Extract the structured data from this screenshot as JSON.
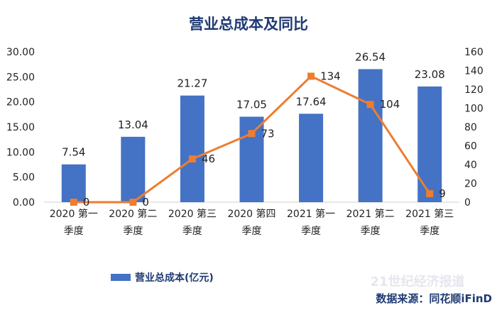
{
  "chart_data": {
    "type": "bar",
    "title": "营业总成本及同比",
    "categories": [
      [
        "2020 第一",
        "季度"
      ],
      [
        "2020 第二",
        "季度"
      ],
      [
        "2020 第三",
        "季度"
      ],
      [
        "2020 第四",
        "季度"
      ],
      [
        "2021 第一",
        "季度"
      ],
      [
        "2021 第二",
        "季度"
      ],
      [
        "2021 第三",
        "季度"
      ]
    ],
    "series": [
      {
        "name": "营业总成本(亿元)",
        "type": "bar",
        "axis": "left",
        "color": "#4472c4",
        "values": [
          7.54,
          13.04,
          21.27,
          17.05,
          17.64,
          26.54,
          23.08
        ],
        "labels": [
          "7.54",
          "13.04",
          "21.27",
          "17.05",
          "17.64",
          "26.54",
          "23.08"
        ]
      },
      {
        "type": "line",
        "axis": "right",
        "color": "#ed7d31",
        "values": [
          0,
          0,
          46,
          73,
          134,
          104,
          9
        ],
        "labels": [
          "0",
          "0",
          "46",
          "73",
          "134",
          "104",
          "9"
        ]
      }
    ],
    "ylim_left": [
      0,
      30
    ],
    "yticks_left": [
      "0.00",
      "5.00",
      "10.00",
      "15.00",
      "20.00",
      "25.00",
      "30.00"
    ],
    "ylim_right": [
      0,
      160
    ],
    "yticks_right": [
      "0",
      "20",
      "40",
      "60",
      "80",
      "100",
      "120",
      "140",
      "160"
    ],
    "legend_position": "bottom-left",
    "grid": false
  },
  "footer": {
    "source": "数据来源：同花顺iFinD",
    "watermark": "21世纪经济报道"
  }
}
